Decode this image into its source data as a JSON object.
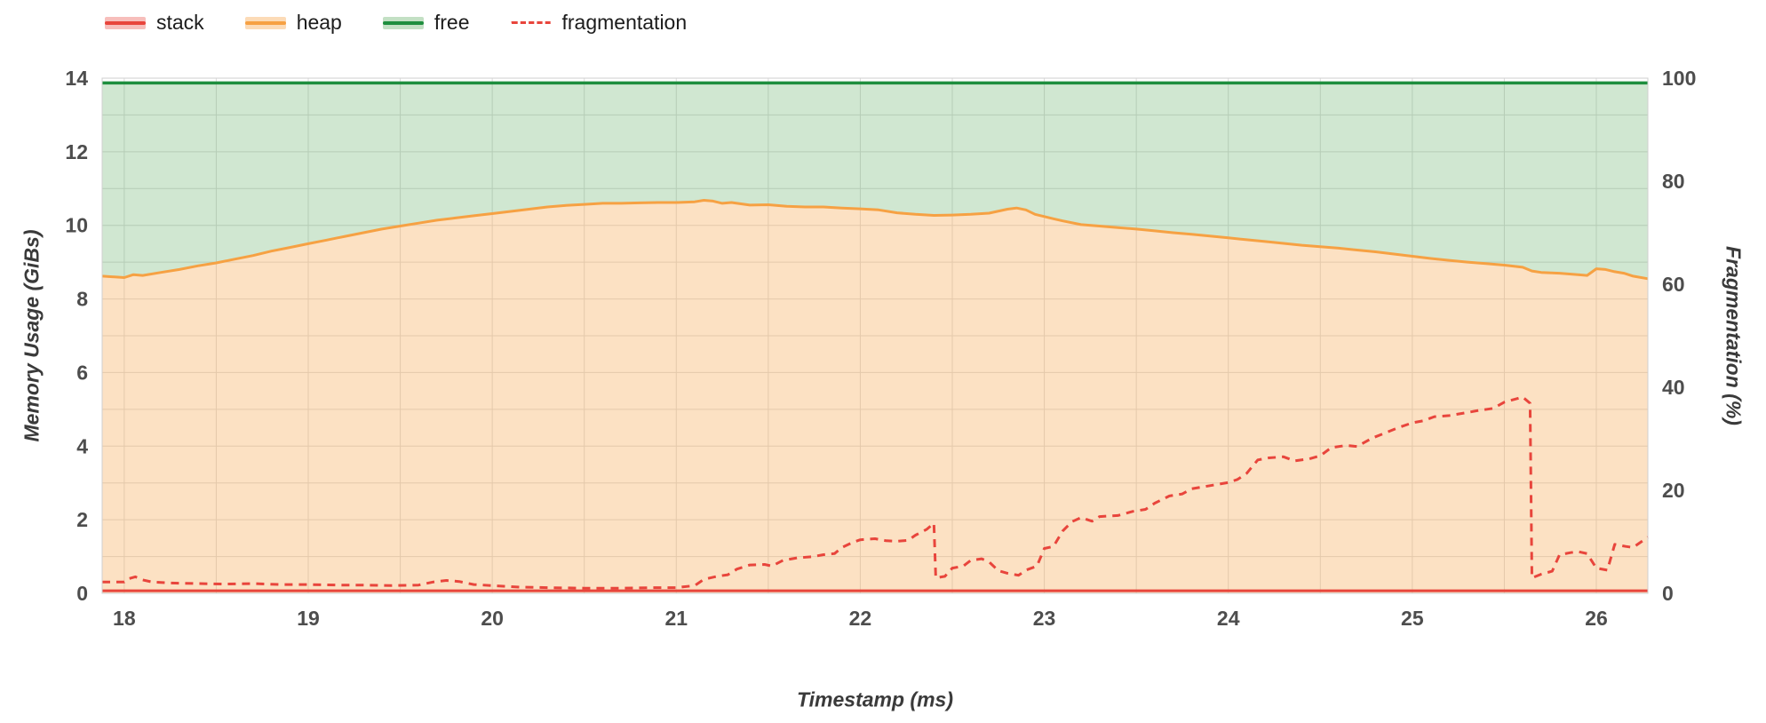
{
  "legend": {
    "items": [
      {
        "label": "stack",
        "color": "#e8453c",
        "tint": "rgba(232,69,60,0.35)",
        "dash": false
      },
      {
        "label": "heap",
        "color": "#f6a143",
        "tint": "rgba(246,161,67,0.38)",
        "dash": false
      },
      {
        "label": "free",
        "color": "#1e8e3e",
        "tint": "rgba(67,160,71,0.32)",
        "dash": false
      },
      {
        "label": "fragmentation",
        "color": "#e8453c",
        "dash": true
      }
    ]
  },
  "colors": {
    "grid": "#dcdcdc",
    "plot_border": "#cfcfcf",
    "tick_text": "#4d4d4d"
  },
  "chart_data": {
    "type": "area",
    "title": "",
    "x_axis": {
      "label": "Timestamp (ms)",
      "min": 17.88,
      "max": 26.28,
      "ticks": [
        18,
        19,
        20,
        21,
        22,
        23,
        24,
        25,
        26
      ],
      "minor_grid_step": 0.5
    },
    "y_left": {
      "label": "Memory Usage (GiBs)",
      "min": 0,
      "max": 14,
      "ticks": [
        0,
        2,
        4,
        6,
        8,
        10,
        12,
        14
      ],
      "grid_step": 1
    },
    "y_right": {
      "label": "Fragmentation (%)",
      "min": 0,
      "max": 100,
      "ticks": [
        0,
        20,
        40,
        60,
        80,
        100
      ]
    },
    "series": [
      {
        "name": "stack",
        "axis": "left",
        "color": "#e8453c",
        "width": 3,
        "points": [
          [
            17.88,
            0.07
          ],
          [
            26.28,
            0.07
          ]
        ]
      },
      {
        "name": "heap",
        "axis": "left",
        "color": "#f6a143",
        "width": 3,
        "fill": "rgba(246,161,67,0.32)",
        "points": [
          [
            17.88,
            8.62
          ],
          [
            18.0,
            8.58
          ],
          [
            18.05,
            8.66
          ],
          [
            18.1,
            8.64
          ],
          [
            18.2,
            8.72
          ],
          [
            18.3,
            8.8
          ],
          [
            18.4,
            8.9
          ],
          [
            18.5,
            8.98
          ],
          [
            18.6,
            9.08
          ],
          [
            18.7,
            9.18
          ],
          [
            18.8,
            9.3
          ],
          [
            18.9,
            9.4
          ],
          [
            19.0,
            9.5
          ],
          [
            19.1,
            9.6
          ],
          [
            19.2,
            9.7
          ],
          [
            19.3,
            9.8
          ],
          [
            19.4,
            9.9
          ],
          [
            19.5,
            9.98
          ],
          [
            19.6,
            10.06
          ],
          [
            19.7,
            10.14
          ],
          [
            19.8,
            10.2
          ],
          [
            19.9,
            10.26
          ],
          [
            20.0,
            10.32
          ],
          [
            20.1,
            10.38
          ],
          [
            20.2,
            10.44
          ],
          [
            20.3,
            10.5
          ],
          [
            20.4,
            10.54
          ],
          [
            20.5,
            10.57
          ],
          [
            20.6,
            10.6
          ],
          [
            20.7,
            10.6
          ],
          [
            20.8,
            10.61
          ],
          [
            20.9,
            10.62
          ],
          [
            21.0,
            10.62
          ],
          [
            21.1,
            10.64
          ],
          [
            21.15,
            10.68
          ],
          [
            21.2,
            10.66
          ],
          [
            21.25,
            10.6
          ],
          [
            21.3,
            10.62
          ],
          [
            21.4,
            10.55
          ],
          [
            21.5,
            10.56
          ],
          [
            21.6,
            10.52
          ],
          [
            21.7,
            10.5
          ],
          [
            21.8,
            10.5
          ],
          [
            21.9,
            10.47
          ],
          [
            22.0,
            10.45
          ],
          [
            22.1,
            10.42
          ],
          [
            22.2,
            10.34
          ],
          [
            22.3,
            10.3
          ],
          [
            22.4,
            10.27
          ],
          [
            22.5,
            10.28
          ],
          [
            22.6,
            10.3
          ],
          [
            22.7,
            10.33
          ],
          [
            22.8,
            10.44
          ],
          [
            22.85,
            10.47
          ],
          [
            22.9,
            10.42
          ],
          [
            22.95,
            10.3
          ],
          [
            23.0,
            10.24
          ],
          [
            23.05,
            10.18
          ],
          [
            23.1,
            10.12
          ],
          [
            23.2,
            10.02
          ],
          [
            23.3,
            9.98
          ],
          [
            23.4,
            9.94
          ],
          [
            23.5,
            9.9
          ],
          [
            23.6,
            9.85
          ],
          [
            23.7,
            9.8
          ],
          [
            23.8,
            9.76
          ],
          [
            23.9,
            9.71
          ],
          [
            24.0,
            9.66
          ],
          [
            24.1,
            9.61
          ],
          [
            24.2,
            9.56
          ],
          [
            24.3,
            9.51
          ],
          [
            24.4,
            9.46
          ],
          [
            24.5,
            9.42
          ],
          [
            24.6,
            9.38
          ],
          [
            24.7,
            9.33
          ],
          [
            24.8,
            9.28
          ],
          [
            24.9,
            9.22
          ],
          [
            25.0,
            9.16
          ],
          [
            25.1,
            9.1
          ],
          [
            25.2,
            9.05
          ],
          [
            25.3,
            9.0
          ],
          [
            25.4,
            8.96
          ],
          [
            25.5,
            8.92
          ],
          [
            25.6,
            8.86
          ],
          [
            25.65,
            8.76
          ],
          [
            25.7,
            8.72
          ],
          [
            25.8,
            8.7
          ],
          [
            25.9,
            8.66
          ],
          [
            25.95,
            8.64
          ],
          [
            26.0,
            8.82
          ],
          [
            26.05,
            8.8
          ],
          [
            26.1,
            8.74
          ],
          [
            26.15,
            8.7
          ],
          [
            26.2,
            8.62
          ],
          [
            26.28,
            8.55
          ]
        ]
      },
      {
        "name": "free",
        "axis": "left",
        "color": "#1e8e3e",
        "width": 3.5,
        "fill": "rgba(67,160,71,0.25)",
        "fill_to": "heap",
        "points": [
          [
            17.88,
            13.87
          ],
          [
            26.28,
            13.87
          ]
        ]
      },
      {
        "name": "fragmentation",
        "axis": "right",
        "color": "#e8453c",
        "width": 3,
        "dash": "9 7",
        "points": [
          [
            17.88,
            2.2
          ],
          [
            18.0,
            2.2
          ],
          [
            18.02,
            2.8
          ],
          [
            18.06,
            3.2
          ],
          [
            18.1,
            2.6
          ],
          [
            18.15,
            2.2
          ],
          [
            18.25,
            2.0
          ],
          [
            18.4,
            1.9
          ],
          [
            18.55,
            1.8
          ],
          [
            18.7,
            1.9
          ],
          [
            18.85,
            1.7
          ],
          [
            19.0,
            1.7
          ],
          [
            19.15,
            1.6
          ],
          [
            19.3,
            1.6
          ],
          [
            19.45,
            1.5
          ],
          [
            19.6,
            1.6
          ],
          [
            19.68,
            2.2
          ],
          [
            19.75,
            2.5
          ],
          [
            19.82,
            2.3
          ],
          [
            19.9,
            1.7
          ],
          [
            20.0,
            1.5
          ],
          [
            20.15,
            1.2
          ],
          [
            20.3,
            1.1
          ],
          [
            20.5,
            1.0
          ],
          [
            20.7,
            1.0
          ],
          [
            20.9,
            1.1
          ],
          [
            21.0,
            1.1
          ],
          [
            21.1,
            1.5
          ],
          [
            21.15,
            2.7
          ],
          [
            21.22,
            3.3
          ],
          [
            21.28,
            3.6
          ],
          [
            21.33,
            4.7
          ],
          [
            21.4,
            5.5
          ],
          [
            21.48,
            5.6
          ],
          [
            21.52,
            5.3
          ],
          [
            21.58,
            6.4
          ],
          [
            21.66,
            6.9
          ],
          [
            21.74,
            7.1
          ],
          [
            21.8,
            7.5
          ],
          [
            21.86,
            7.7
          ],
          [
            21.9,
            8.9
          ],
          [
            21.96,
            9.9
          ],
          [
            22.0,
            10.4
          ],
          [
            22.08,
            10.6
          ],
          [
            22.14,
            10.2
          ],
          [
            22.2,
            10.1
          ],
          [
            22.26,
            10.3
          ],
          [
            22.3,
            11.3
          ],
          [
            22.36,
            12.4
          ],
          [
            22.4,
            13.6
          ],
          [
            22.41,
            3.0
          ],
          [
            22.46,
            3.3
          ],
          [
            22.5,
            4.9
          ],
          [
            22.56,
            5.3
          ],
          [
            22.6,
            6.4
          ],
          [
            22.66,
            6.7
          ],
          [
            22.7,
            6.1
          ],
          [
            22.75,
            4.4
          ],
          [
            22.8,
            3.9
          ],
          [
            22.86,
            3.5
          ],
          [
            22.9,
            4.5
          ],
          [
            22.96,
            5.3
          ],
          [
            23.0,
            8.7
          ],
          [
            23.05,
            9.1
          ],
          [
            23.1,
            12.1
          ],
          [
            23.15,
            13.9
          ],
          [
            23.2,
            14.7
          ],
          [
            23.26,
            14.0
          ],
          [
            23.3,
            14.9
          ],
          [
            23.4,
            15.1
          ],
          [
            23.48,
            15.9
          ],
          [
            23.55,
            16.3
          ],
          [
            23.6,
            17.5
          ],
          [
            23.68,
            18.9
          ],
          [
            23.75,
            19.3
          ],
          [
            23.8,
            20.3
          ],
          [
            23.9,
            20.9
          ],
          [
            24.0,
            21.5
          ],
          [
            24.05,
            22.1
          ],
          [
            24.1,
            23.3
          ],
          [
            24.16,
            25.9
          ],
          [
            24.22,
            26.3
          ],
          [
            24.3,
            26.5
          ],
          [
            24.36,
            25.7
          ],
          [
            24.44,
            26.1
          ],
          [
            24.5,
            26.7
          ],
          [
            24.56,
            28.3
          ],
          [
            24.64,
            28.7
          ],
          [
            24.7,
            28.5
          ],
          [
            24.78,
            30.1
          ],
          [
            24.85,
            31.1
          ],
          [
            24.92,
            32.1
          ],
          [
            25.0,
            33.1
          ],
          [
            25.06,
            33.5
          ],
          [
            25.12,
            34.3
          ],
          [
            25.2,
            34.5
          ],
          [
            25.3,
            35.1
          ],
          [
            25.36,
            35.5
          ],
          [
            25.44,
            35.9
          ],
          [
            25.5,
            37.1
          ],
          [
            25.56,
            37.7
          ],
          [
            25.6,
            38.1
          ],
          [
            25.64,
            36.9
          ],
          [
            25.65,
            3.0
          ],
          [
            25.7,
            3.7
          ],
          [
            25.76,
            4.3
          ],
          [
            25.8,
            7.5
          ],
          [
            25.86,
            7.9
          ],
          [
            25.9,
            8.1
          ],
          [
            25.95,
            7.7
          ],
          [
            26.0,
            4.9
          ],
          [
            26.06,
            4.5
          ],
          [
            26.1,
            9.5
          ],
          [
            26.16,
            9.1
          ],
          [
            26.2,
            8.9
          ],
          [
            26.28,
            10.9
          ]
        ]
      }
    ]
  }
}
